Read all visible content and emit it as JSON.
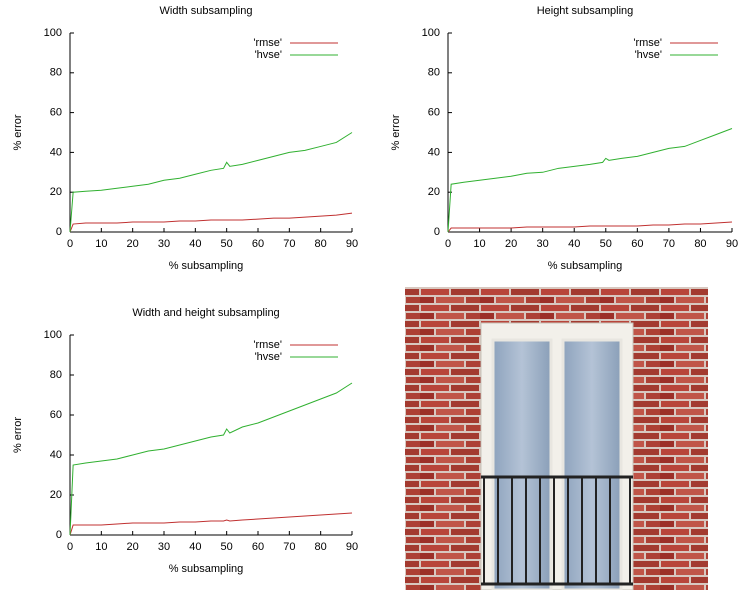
{
  "chart_data": [
    {
      "type": "line",
      "title": "Width subsampling",
      "xlabel": "% subsampling",
      "ylabel": "% error",
      "x": [
        0,
        1,
        5,
        10,
        15,
        20,
        25,
        30,
        35,
        40,
        45,
        49,
        50,
        51,
        55,
        60,
        65,
        70,
        75,
        80,
        85,
        90
      ],
      "series": [
        {
          "name": "'rmse'",
          "color": "#c03030",
          "values": [
            0,
            4,
            4.5,
            4.5,
            4.5,
            5,
            5,
            5,
            5.5,
            5.5,
            6,
            6,
            6,
            6,
            6,
            6.5,
            7,
            7,
            7.5,
            8,
            8.5,
            9.5
          ]
        },
        {
          "name": "'hvse'",
          "color": "#30b030",
          "values": [
            0,
            20,
            20.5,
            21,
            22,
            23,
            24,
            26,
            27,
            29,
            31,
            32,
            35,
            33,
            34,
            36,
            38,
            40,
            41,
            43,
            45,
            50
          ]
        }
      ],
      "xlim": [
        0,
        90
      ],
      "xticks": [
        0,
        10,
        20,
        30,
        40,
        50,
        60,
        70,
        80,
        90
      ],
      "ylim": [
        0,
        100
      ],
      "yticks": [
        0,
        20,
        40,
        60,
        80,
        100
      ],
      "legend": "top-right"
    },
    {
      "type": "line",
      "title": "Height subsampling",
      "xlabel": "% subsampling",
      "ylabel": "% error",
      "x": [
        0,
        1,
        5,
        10,
        15,
        20,
        25,
        30,
        35,
        40,
        45,
        49,
        50,
        51,
        55,
        60,
        65,
        70,
        75,
        80,
        85,
        90
      ],
      "series": [
        {
          "name": "'rmse'",
          "color": "#c03030",
          "values": [
            0,
            2,
            2,
            2,
            2,
            2,
            2.5,
            2.5,
            2.5,
            2.5,
            3,
            3,
            3,
            3,
            3,
            3,
            3.5,
            3.5,
            4,
            4,
            4.5,
            5
          ]
        },
        {
          "name": "'hvse'",
          "color": "#30b030",
          "values": [
            0,
            24,
            25,
            26,
            27,
            28,
            29.5,
            30,
            32,
            33,
            34,
            35,
            37,
            36,
            37,
            38,
            40,
            42,
            43,
            46,
            49,
            52
          ]
        }
      ],
      "xlim": [
        0,
        90
      ],
      "xticks": [
        0,
        10,
        20,
        30,
        40,
        50,
        60,
        70,
        80,
        90
      ],
      "ylim": [
        0,
        100
      ],
      "yticks": [
        0,
        20,
        40,
        60,
        80,
        100
      ],
      "legend": "top-right"
    },
    {
      "type": "line",
      "title": "Width and height subsampling",
      "xlabel": "% subsampling",
      "ylabel": "% error",
      "x": [
        0,
        1,
        5,
        10,
        15,
        20,
        25,
        30,
        35,
        40,
        45,
        49,
        50,
        51,
        55,
        60,
        65,
        70,
        75,
        80,
        85,
        90
      ],
      "series": [
        {
          "name": "'rmse'",
          "color": "#c03030",
          "values": [
            0,
            5,
            5,
            5,
            5.5,
            6,
            6,
            6,
            6.5,
            6.5,
            7,
            7,
            7.5,
            7,
            7.5,
            8,
            8.5,
            9,
            9.5,
            10,
            10.5,
            11
          ]
        },
        {
          "name": "'hvse'",
          "color": "#30b030",
          "values": [
            0,
            35,
            36,
            37,
            38,
            40,
            42,
            43,
            45,
            47,
            49,
            50,
            53,
            51,
            54,
            56,
            59,
            62,
            65,
            68,
            71,
            76
          ]
        }
      ],
      "xlim": [
        0,
        90
      ],
      "xticks": [
        0,
        10,
        20,
        30,
        40,
        50,
        60,
        70,
        80,
        90
      ],
      "ylim": [
        0,
        100
      ],
      "yticks": [
        0,
        20,
        40,
        60,
        80,
        100
      ],
      "legend": "top-right"
    }
  ]
}
